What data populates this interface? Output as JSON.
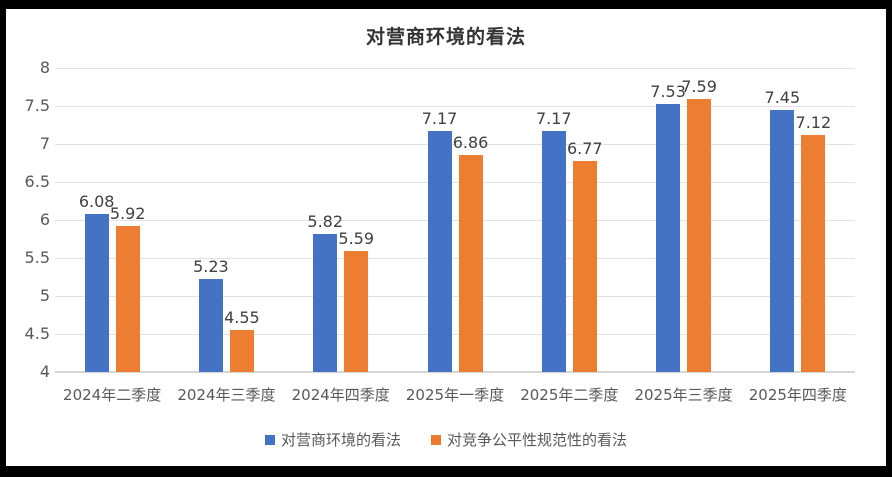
{
  "chart_data": {
    "type": "bar",
    "title": "对营商环境的看法",
    "xlabel": "",
    "ylabel": "",
    "categories": [
      "2024年二季度",
      "2024年三季度",
      "2024年四季度",
      "2025年一季度",
      "2025年二季度",
      "2025年三季度",
      "2025年四季度"
    ],
    "series": [
      {
        "name": "对营商环境的看法",
        "color": "#4472C4",
        "values": [
          6.08,
          5.23,
          5.82,
          7.17,
          7.17,
          7.53,
          7.45
        ]
      },
      {
        "name": "对竞争公平性规范性的看法",
        "color": "#ED7D31",
        "values": [
          5.92,
          4.55,
          5.59,
          6.86,
          6.77,
          7.59,
          7.12
        ]
      }
    ],
    "ylim": [
      4,
      8
    ],
    "ytick_step": 0.5,
    "yticks": [
      "8",
      "7.5",
      "7",
      "6.5",
      "6",
      "5.5",
      "5",
      "4.5",
      "4"
    ],
    "grid": true,
    "legend_position": "bottom",
    "colors": {
      "grid": "#E2E2E2",
      "axis_text": "#595959",
      "data_label": "#404040",
      "title_text": "#333333",
      "background": "#FFFFFF",
      "frame": "#000000"
    }
  }
}
